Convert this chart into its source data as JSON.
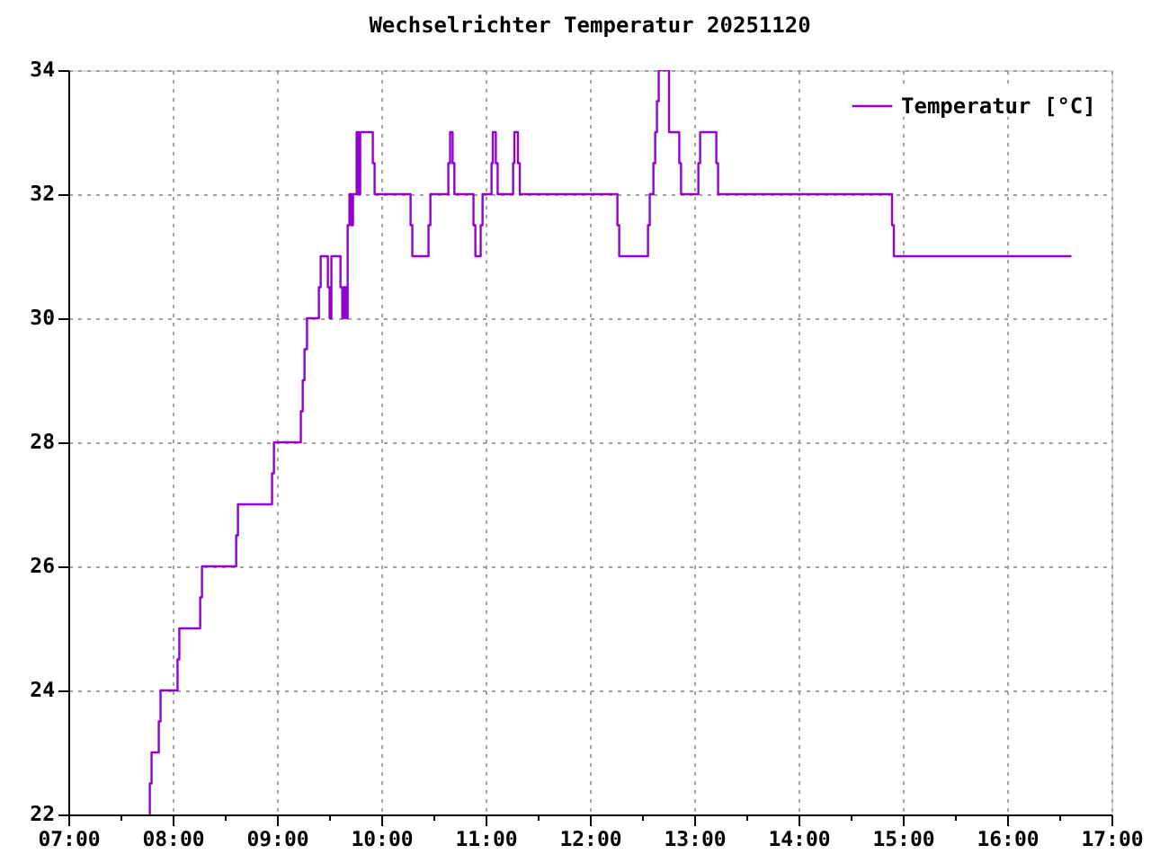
{
  "chart_data": {
    "type": "step",
    "title": "Wechselrichter Temperatur 20251120",
    "x": [
      7.78,
      7.781,
      7.798,
      7.867,
      7.884,
      8.047,
      8.064,
      8.264,
      8.281,
      8.609,
      8.626,
      8.953,
      8.971,
      9.229,
      9.247,
      9.264,
      9.288,
      9.402,
      9.419,
      9.488,
      9.505,
      9.522,
      9.609,
      9.626,
      9.643,
      9.66,
      9.678,
      9.695,
      9.712,
      9.729,
      9.764,
      9.781,
      9.798,
      9.919,
      9.936,
      10.281,
      10.298,
      10.453,
      10.471,
      10.643,
      10.66,
      10.684,
      10.701,
      10.884,
      10.902,
      10.953,
      10.971,
      11.057,
      11.069,
      11.098,
      11.116,
      11.264,
      11.276,
      11.31,
      11.328,
      12.264,
      12.281,
      12.557,
      12.574,
      12.609,
      12.626,
      12.643,
      12.66,
      12.759,
      12.857,
      12.874,
      13.04,
      13.057,
      13.212,
      13.229,
      14.897,
      14.914,
      16.616
    ],
    "series": [
      {
        "name": "Temperatur [°C]",
        "color": "#9400d3",
        "values": [
          22,
          22.5,
          23,
          23.5,
          24,
          24.5,
          25,
          25.5,
          26,
          26.5,
          27,
          27.5,
          28,
          28.5,
          29,
          29.5,
          30,
          30.5,
          31,
          30.5,
          30,
          31,
          30.5,
          30,
          30.5,
          30,
          31.5,
          32,
          31.5,
          32,
          33,
          32,
          33,
          32.5,
          32,
          31.5,
          31,
          31.5,
          32,
          32.5,
          33,
          32.5,
          32,
          31.5,
          31,
          31.5,
          32,
          32.5,
          33,
          32.5,
          32,
          32.5,
          33,
          32.5,
          32,
          31.5,
          31,
          31.5,
          32,
          32.5,
          33,
          33.5,
          34,
          33,
          32.5,
          32,
          32.5,
          33,
          32.5,
          32,
          31.5,
          31,
          31
        ]
      }
    ],
    "xlim": [
      7,
      17
    ],
    "xticks": [
      {
        "value": 7,
        "label": "07:00"
      },
      {
        "value": 7.5,
        "label": null
      },
      {
        "value": 8,
        "label": "08:00"
      },
      {
        "value": 8.5,
        "label": null
      },
      {
        "value": 9,
        "label": "09:00"
      },
      {
        "value": 9.5,
        "label": null
      },
      {
        "value": 10,
        "label": "10:00"
      },
      {
        "value": 10.5,
        "label": null
      },
      {
        "value": 11,
        "label": "11:00"
      },
      {
        "value": 11.5,
        "label": null
      },
      {
        "value": 12,
        "label": "12:00"
      },
      {
        "value": 12.5,
        "label": null
      },
      {
        "value": 13,
        "label": "13:00"
      },
      {
        "value": 13.5,
        "label": null
      },
      {
        "value": 14,
        "label": "14:00"
      },
      {
        "value": 14.5,
        "label": null
      },
      {
        "value": 15,
        "label": "15:00"
      },
      {
        "value": 15.5,
        "label": null
      },
      {
        "value": 16,
        "label": "16:00"
      },
      {
        "value": 16.5,
        "label": null
      },
      {
        "value": 17,
        "label": "17:00"
      }
    ],
    "ylim": [
      22,
      34
    ],
    "yticks": [
      22,
      24,
      26,
      28,
      30,
      32,
      34
    ],
    "grid": true,
    "legend": "top right"
  }
}
